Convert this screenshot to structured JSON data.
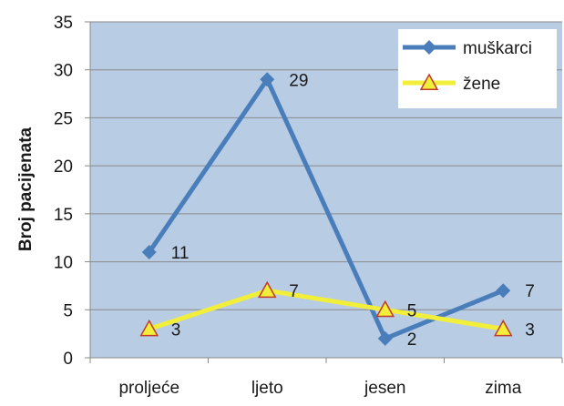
{
  "chart_data": {
    "type": "line",
    "title": "",
    "xlabel": "",
    "ylabel": "Broj pacijenata",
    "ylim": [
      0,
      35
    ],
    "yticks": [
      0,
      5,
      10,
      15,
      20,
      25,
      30,
      35
    ],
    "categories": [
      "proljeće",
      "ljeto",
      "jesen",
      "zima"
    ],
    "grid": true,
    "legend_position": "top-right",
    "plot_background": "#b8cce4",
    "series": [
      {
        "name": "muškarci",
        "values": [
          11,
          29,
          2,
          7
        ],
        "color": "#4a7ebb",
        "marker": "diamond",
        "labels": [
          "11",
          "29",
          "2",
          "7"
        ]
      },
      {
        "name": "žene",
        "values": [
          3,
          7,
          5,
          3
        ],
        "color": "#f2ef3a",
        "marker": "triangle",
        "marker_edge": "#c0392b",
        "labels": [
          "3",
          "7",
          "5",
          "3"
        ]
      }
    ]
  }
}
